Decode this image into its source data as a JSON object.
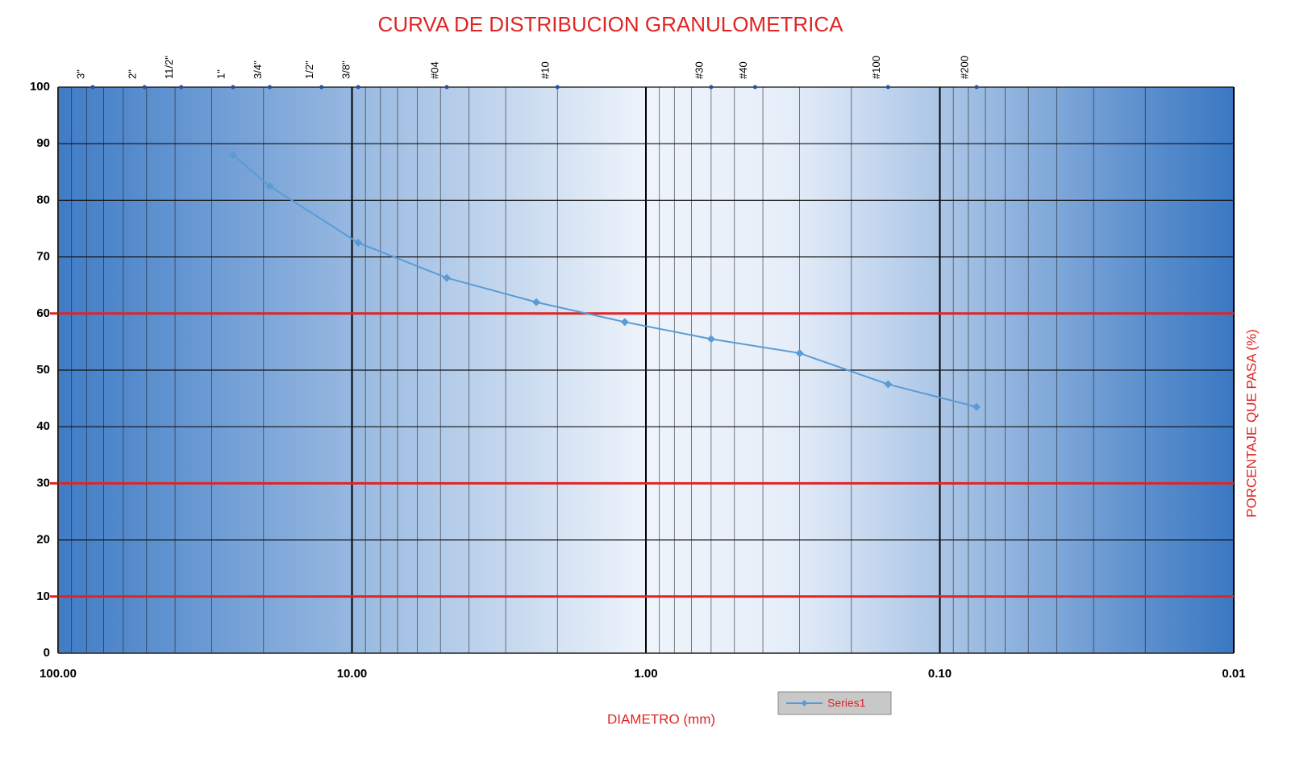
{
  "chart_data": {
    "type": "line",
    "title": "CURVA DE DISTRIBUCION GRANULOMETRICA",
    "x_label": "DIAMETRO (mm)",
    "y_label": "PORCENTAJE QUE PASA (%)",
    "xscale": "log",
    "xlim": [
      100,
      0.01
    ],
    "xticks": [
      {
        "value": 100,
        "label": "100.00"
      },
      {
        "value": 10,
        "label": "10.00"
      },
      {
        "value": 1,
        "label": "1.00"
      },
      {
        "value": 0.1,
        "label": "0.10"
      },
      0.01
    ],
    "ylim": [
      0,
      100
    ],
    "yticks": [
      0,
      10,
      20,
      30,
      40,
      50,
      60,
      70,
      80,
      90,
      100
    ],
    "grid": true,
    "legend": "bottom",
    "series": [
      {
        "name": "Series1",
        "color": "#5b9bd5",
        "x": [
          25.4,
          19.05,
          9.525,
          4.76,
          2.36,
          1.18,
          0.6,
          0.3,
          0.15,
          0.075
        ],
        "values": [
          88,
          82.5,
          72.5,
          66.3,
          62,
          58.5,
          55.5,
          53,
          47.5,
          43.5
        ]
      }
    ],
    "reference_lines": {
      "values": [
        10,
        30,
        60
      ],
      "color": "#e02424"
    },
    "sieves": [
      {
        "label": "3\"",
        "value": 76.2
      },
      {
        "label": "2\"",
        "value": 50.8
      },
      {
        "label": "11/2\"",
        "value": 38.1
      },
      {
        "label": "1\"",
        "value": 25.4
      },
      {
        "label": "3/4\"",
        "value": 19.05
      },
      {
        "label": "1/2\"",
        "value": 12.7
      },
      {
        "label": "3/8\"",
        "value": 9.525
      },
      {
        "label": "#04",
        "value": 4.76
      },
      {
        "label": "#10",
        "value": 2.0
      },
      {
        "label": "#30",
        "value": 0.6
      },
      {
        "label": "#40",
        "value": 0.425
      },
      {
        "label": "#100",
        "value": 0.15
      },
      {
        "label": "#200",
        "value": 0.075
      }
    ]
  }
}
